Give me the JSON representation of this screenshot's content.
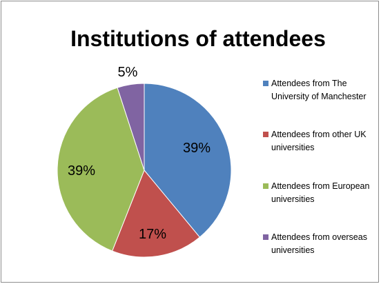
{
  "chart_data": {
    "type": "pie",
    "title": "Institutions of attendees",
    "slices": [
      {
        "label": "Attendees from The University of Manchester",
        "value": 39,
        "display": "39%",
        "color": "#4f81bd"
      },
      {
        "label": "Attendees from other UK universities",
        "value": 17,
        "display": "17%",
        "color": "#c0504d"
      },
      {
        "label": "Attendees from European universities",
        "value": 39,
        "display": "39%",
        "color": "#9bbb59"
      },
      {
        "label": "Attendees from overseas universities",
        "value": 5,
        "display": "5%",
        "color": "#8064a2"
      }
    ],
    "legend_position": "right"
  }
}
